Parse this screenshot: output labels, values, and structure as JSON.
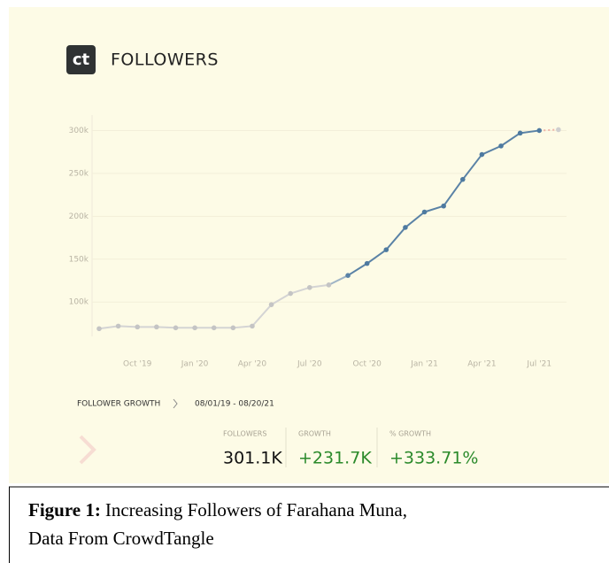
{
  "chart_data": {
    "type": "line",
    "title": "FOLLOWERS",
    "logo": "ct",
    "categories": [
      null,
      null,
      "Oct '19",
      null,
      null,
      "Jan '20",
      null,
      null,
      "Apr '20",
      null,
      null,
      "Jul '20",
      null,
      null,
      "Oct '20",
      null,
      null,
      "Jan '21",
      null,
      null,
      "Apr '21",
      null,
      null,
      "Jul '21",
      null
    ],
    "values": [
      69000,
      72000,
      71000,
      71000,
      70000,
      70000,
      70000,
      70000,
      72000,
      97000,
      110000,
      117000,
      120000,
      131000,
      145000,
      161000,
      187000,
      205000,
      212000,
      243000,
      272000,
      282000,
      297000,
      300000,
      301000
    ],
    "point_colors": [
      "#c4c4c4",
      "#c4c4c4",
      "#c4c4c4",
      "#c4c4c4",
      "#c4c4c4",
      "#c4c4c4",
      "#c4c4c4",
      "#c4c4c4",
      "#c4c4c4",
      "#c4c4c4",
      "#c4c4c4",
      "#c4c4c4",
      "#c4c4c4",
      "#5a82a6",
      "#4e7aa0",
      "#4e7aa0",
      "#4e7aa0",
      "#4e7aa0",
      "#4e7aa0",
      "#4e7aa0",
      "#4e7aa0",
      "#4e7aa0",
      "#4e7aa0",
      "#4e7aa0",
      "#cfcfcf"
    ],
    "segment_colors": [
      "#d4d4d4",
      "#d4d4d4",
      "#d4d4d4",
      "#d4d4d4",
      "#d4d4d4",
      "#d4d4d4",
      "#d4d4d4",
      "#d4d4d4",
      "#d4d4d4",
      "#d4d4d4",
      "#d4d4d4",
      "#d4d4d4",
      "#9fb4c6",
      "#5a82a6",
      "#5a82a6",
      "#5a82a6",
      "#5a82a6",
      "#5a82a6",
      "#5a82a6",
      "#5a82a6",
      "#5a82a6",
      "#5a82a6",
      "#5a82a6",
      "#efb2a6"
    ],
    "dashed_segments": [
      23
    ],
    "ylim": [
      60000,
      318000
    ],
    "yticks": [
      {
        "value": 100000,
        "label": "100k"
      },
      {
        "value": 150000,
        "label": "150k"
      },
      {
        "value": 200000,
        "label": "200k"
      },
      {
        "value": 250000,
        "label": "250k"
      },
      {
        "value": 300000,
        "label": "300k"
      }
    ],
    "grid": true
  },
  "summary": {
    "label": "FOLLOWER GROWTH",
    "range": "08/01/19 - 08/20/21",
    "stats": [
      {
        "label": "FOLLOWERS",
        "value": "301.1K",
        "color": "#111111"
      },
      {
        "label": "GROWTH",
        "value": "+231.7K",
        "color": "#2b8a2b"
      },
      {
        "label": "% GROWTH",
        "value": "+333.71%",
        "color": "#2b8a2b"
      }
    ]
  },
  "caption": {
    "label": "Figure 1:",
    "text": "Increasing Followers of Farahana Muna,",
    "text2": "Data From CrowdTangle"
  }
}
